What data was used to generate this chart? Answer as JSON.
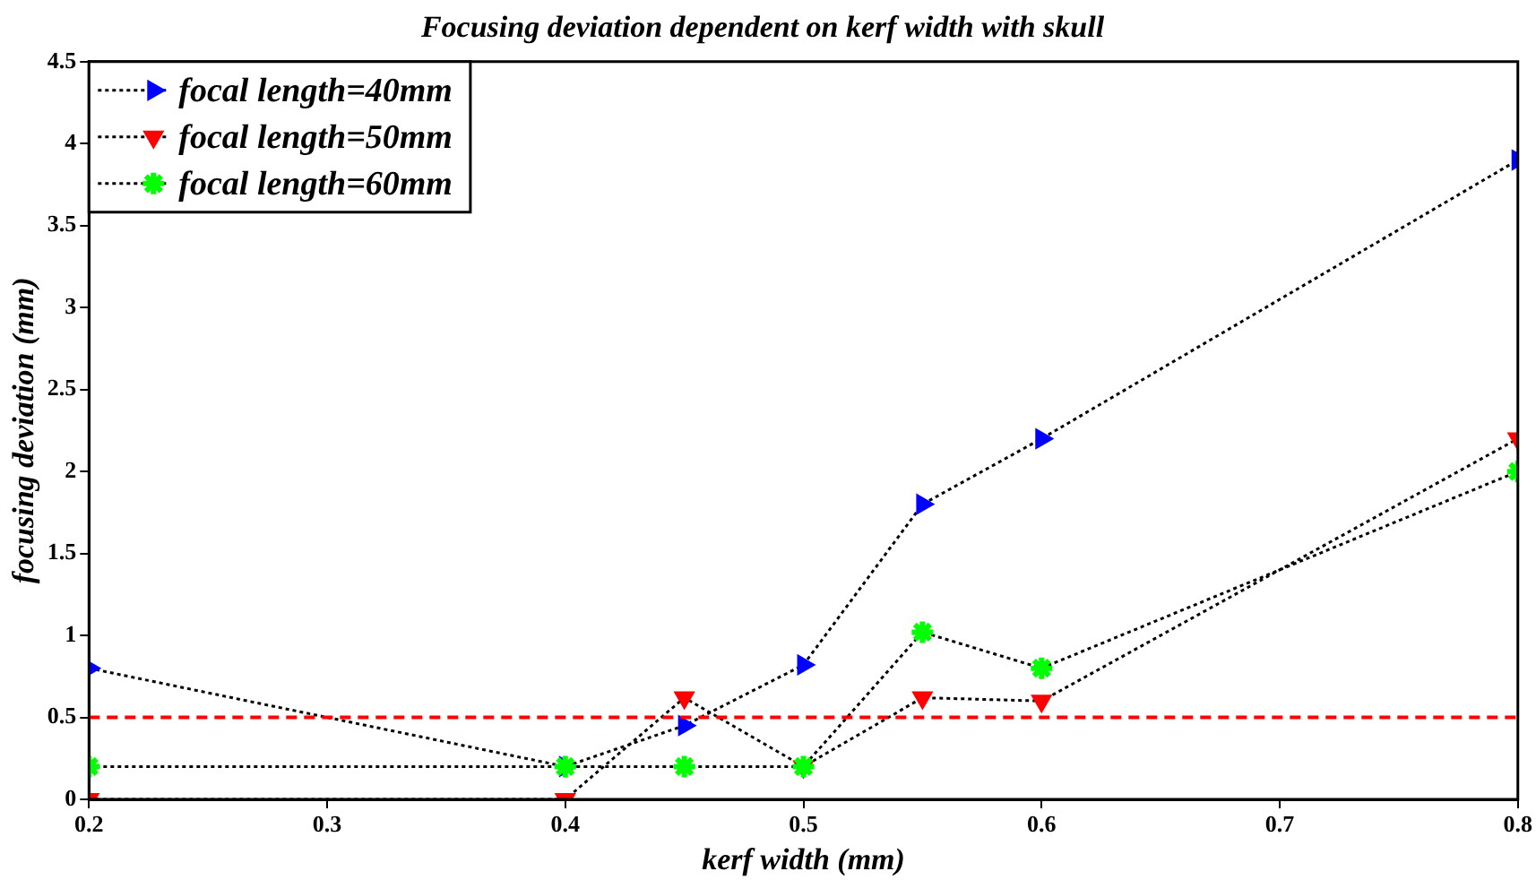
{
  "chart_data": {
    "type": "line",
    "title": "Focusing deviation dependent on kerf width with skull",
    "xlabel": "kerf width (mm)",
    "ylabel": "focusing deviation (mm)",
    "x": [
      0.2,
      0.4,
      0.45,
      0.5,
      0.55,
      0.6,
      0.8
    ],
    "series": [
      {
        "name": "focal length=40mm",
        "color": "#0000ff",
        "marker": "triangle",
        "values": [
          0.8,
          0.2,
          0.45,
          0.82,
          1.8,
          2.2,
          3.9
        ]
      },
      {
        "name": "focal length=50mm",
        "color": "#ff0000",
        "marker": "triangle",
        "values": [
          0,
          0,
          0.62,
          0.2,
          0.62,
          0.6,
          2.2
        ]
      },
      {
        "name": "focal length=60mm",
        "color": "#00ff00",
        "marker": "cross",
        "values": [
          0.2,
          0.2,
          0.2,
          0.2,
          1.02,
          0.8,
          2.0
        ]
      }
    ],
    "line_style": "dotted",
    "ref_lines": [
      {
        "axis": "y",
        "value": 0.5,
        "color": "#ff0000",
        "line_style": "dashed"
      }
    ],
    "xlim": [
      0.2,
      0.8
    ],
    "xticks": [
      0.2,
      0.3,
      0.4,
      0.5,
      0.6,
      0.7,
      0.8
    ],
    "ylim": [
      0,
      4.5
    ],
    "yticks": [
      0,
      0.5,
      1,
      1.5,
      2,
      2.5,
      3,
      3.5,
      4,
      4.5
    ],
    "grid": false,
    "legend": "top left"
  }
}
